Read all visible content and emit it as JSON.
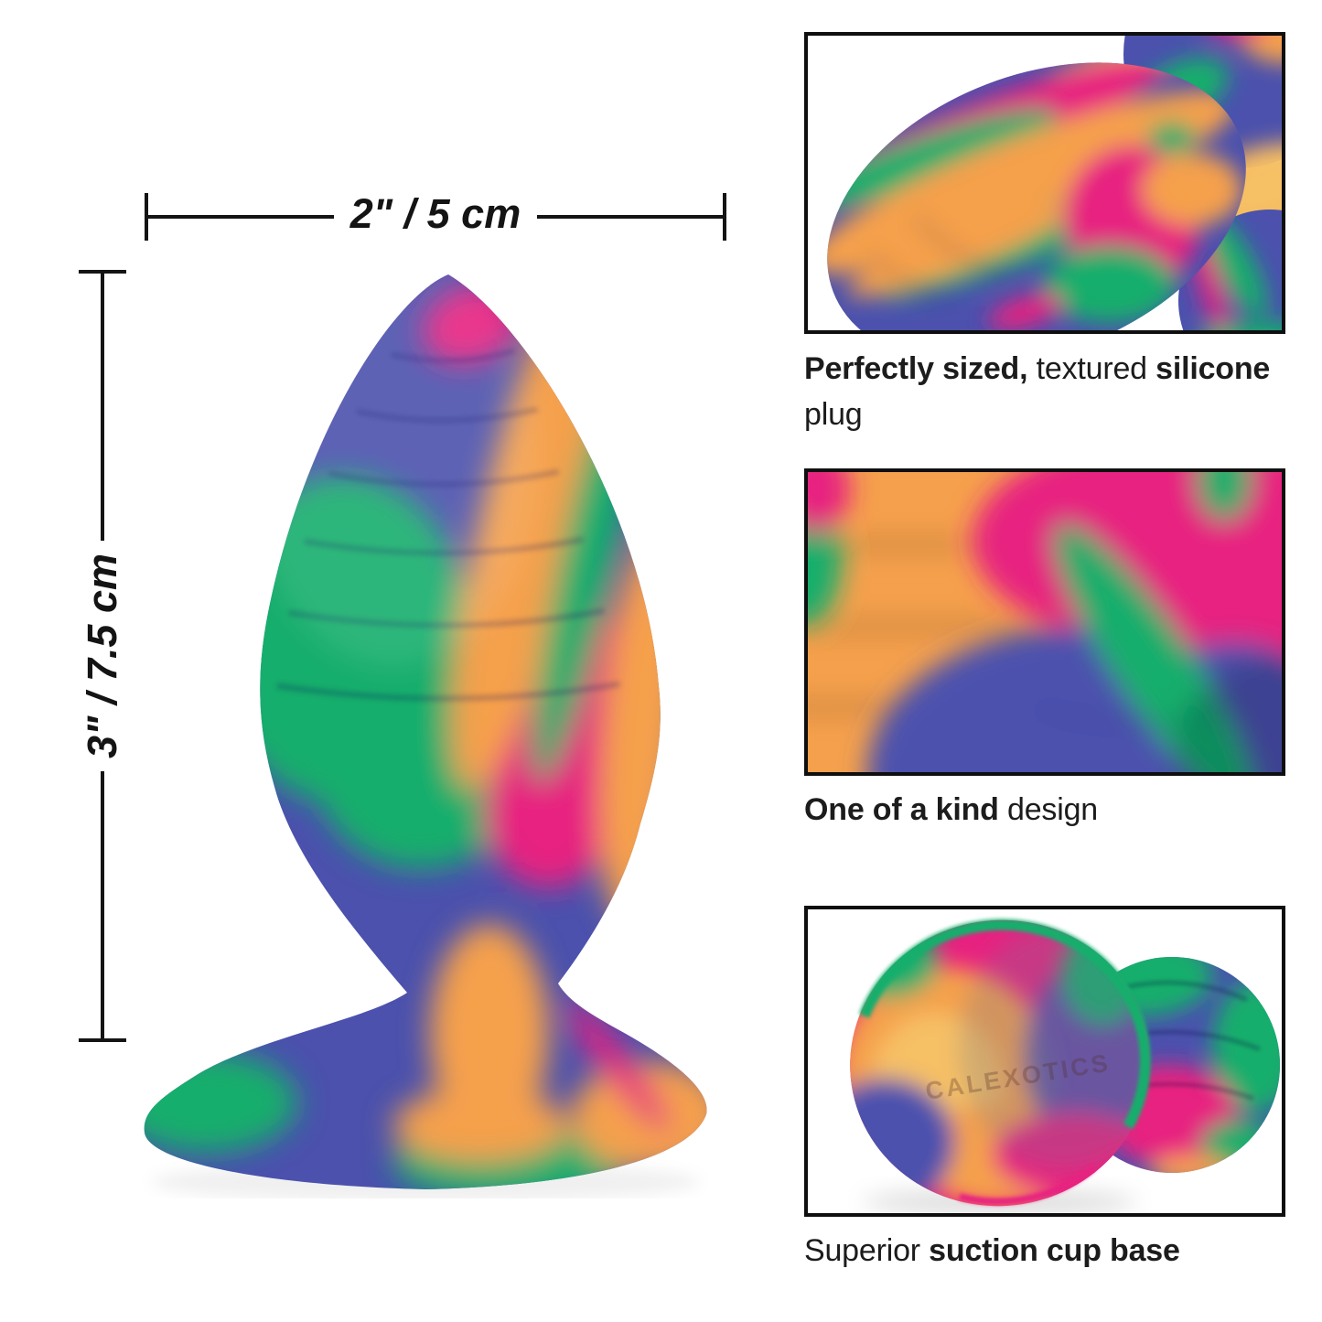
{
  "colors": {
    "blue": "#4b51ad",
    "green": "#13ae6c",
    "orange": "#f5a04c",
    "amber": "#f6c065",
    "pink": "#e72180",
    "ink": "#141414",
    "text": "#1c1c1c"
  },
  "dimensions": {
    "width_label": "2\" / 5 cm",
    "height_label": "3\" / 7.5 cm"
  },
  "features": [
    {
      "caption": [
        {
          "t": "Perfectly sized,",
          "b": true
        },
        {
          "t": " textured ",
          "b": false
        },
        {
          "t": "silicone",
          "b": true
        },
        {
          "t": " plug",
          "b": false
        }
      ]
    },
    {
      "caption": [
        {
          "t": "One of a kind",
          "b": true
        },
        {
          "t": " design",
          "b": false
        }
      ]
    },
    {
      "caption": [
        {
          "t": "Superior ",
          "b": false
        },
        {
          "t": "suction cup base",
          "b": true
        }
      ]
    }
  ],
  "embossed_text": "CALEXOTICS"
}
